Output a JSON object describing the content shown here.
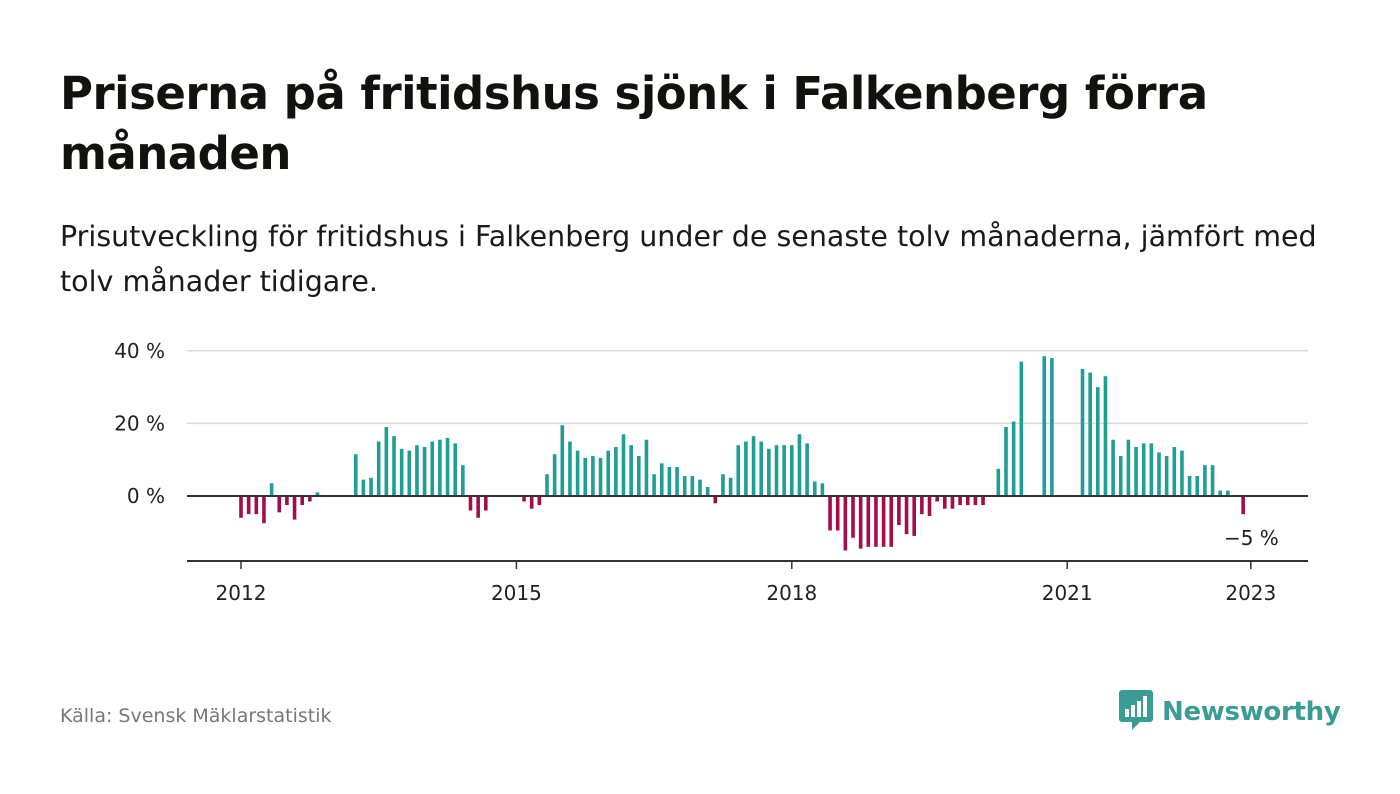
{
  "title": "Priserna på fritidshus sjönk i Falkenberg förra månaden",
  "subtitle": "Prisutveckling för fritidshus i Falkenberg under de senaste tolv månaderna, jämfört med tolv månader tidigare.",
  "source": "Källa: Svensk Mäklarstatistik",
  "brand": {
    "name": "Newsworthy",
    "logo_icon": "newsworthy-bar-chart-icon",
    "color": "#3a9c94"
  },
  "colors": {
    "positive": "#1f9e94",
    "negative": "#a50c4a",
    "grid": "#d9d9d9",
    "axis": "#333333"
  },
  "chart_data": {
    "type": "bar",
    "xlabel": "",
    "ylabel": "",
    "ylim": [
      -18,
      40
    ],
    "y_ticks": [
      0,
      20,
      40
    ],
    "y_tick_labels": [
      "0 %",
      "20 %",
      "40 %"
    ],
    "x_ticks": [
      2012,
      2015,
      2018,
      2021,
      2023
    ],
    "x_tick_labels": [
      "2012",
      "2015",
      "2018",
      "2021",
      "2023"
    ],
    "x_start": "2012-01",
    "annotation": {
      "text": "−5 %",
      "date": "2023-01"
    },
    "grid": true,
    "series": [
      {
        "values": [
          -6,
          -5,
          -5,
          -7.5,
          3.5,
          -4.5,
          -2.5,
          -6.5,
          -2.5,
          -1.5,
          1,
          null,
          null,
          null,
          null,
          11.5,
          4.5,
          5,
          15,
          19,
          16.5,
          13,
          12.5,
          14,
          13.5,
          15,
          15.5,
          16,
          14.5,
          8.5,
          -4,
          -6,
          -4,
          null,
          null,
          null,
          null,
          -1.5,
          -3.5,
          -2.5,
          6,
          11.5,
          19.5,
          15,
          12.5,
          10.5,
          11,
          10.5,
          12.5,
          13.5,
          17,
          14,
          11,
          15.5,
          6,
          9,
          8,
          8,
          5.5,
          5.5,
          4.5,
          2.5,
          -2,
          6,
          5,
          14,
          15,
          16.5,
          15,
          13,
          14,
          14,
          14,
          17,
          14.5,
          4,
          3.5,
          -9.5,
          -9.5,
          -15,
          -11.5,
          -14.5,
          -14,
          -14,
          -14,
          -14,
          -8,
          -10.5,
          -11,
          -5,
          -5.5,
          -1.5,
          -3.5,
          -3.5,
          -2.5,
          -2.5,
          -2.5,
          -2.5,
          null,
          7.5,
          19,
          20.5,
          37,
          null,
          null,
          38.5,
          38,
          null,
          null,
          null,
          35,
          34,
          30,
          33,
          15.5,
          11,
          15.5,
          13.5,
          14.5,
          14.5,
          12,
          11,
          13.5,
          12.5,
          5.5,
          5.5,
          8.5,
          8.5,
          1.5,
          1.5,
          0,
          -5
        ]
      }
    ]
  }
}
